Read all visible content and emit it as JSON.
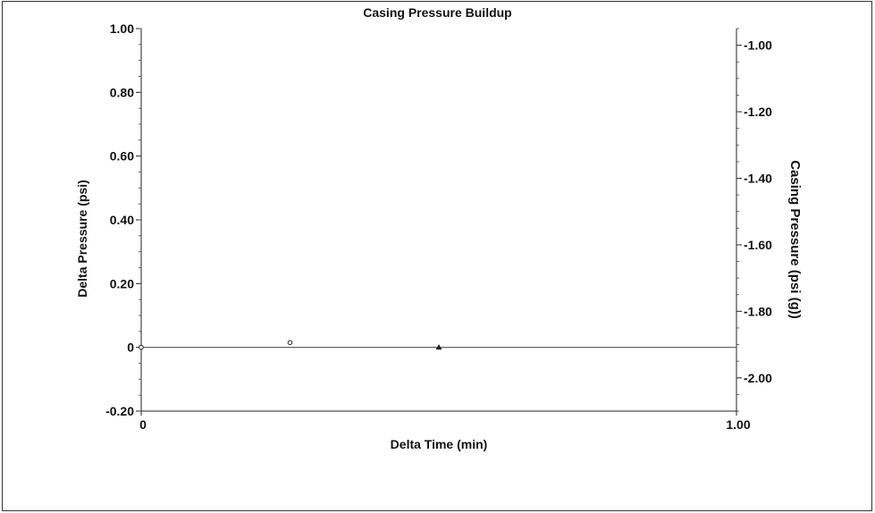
{
  "chart_data": {
    "type": "scatter",
    "title": "Casing Pressure Buildup",
    "xlabel": "Delta Time (min)",
    "ylabel": "Delta Pressure (psi)",
    "ylabel_right": "Casing Pressure (psi (g))",
    "xlim": [
      0,
      1.0
    ],
    "ylim": [
      -0.2,
      1.0
    ],
    "ylim_right": [
      -2.1,
      -0.95
    ],
    "x_ticks": [
      "0",
      "1.00"
    ],
    "y_ticks": [
      "-0.20",
      "0",
      "0.20",
      "0.40",
      "0.60",
      "0.80",
      "1.00"
    ],
    "y_ticks_right": [
      "-2.00",
      "-1.80",
      "-1.60",
      "-1.40",
      "-1.20",
      "-1.00"
    ],
    "grid": false,
    "series": [
      {
        "marker": "circle-open",
        "points": [
          {
            "x": 0.0,
            "y": 0.0
          },
          {
            "x": 0.25,
            "y": 0.015
          }
        ]
      },
      {
        "marker": "triangle-filled",
        "points": [
          {
            "x": 0.5,
            "y": 0.0
          }
        ]
      }
    ]
  }
}
